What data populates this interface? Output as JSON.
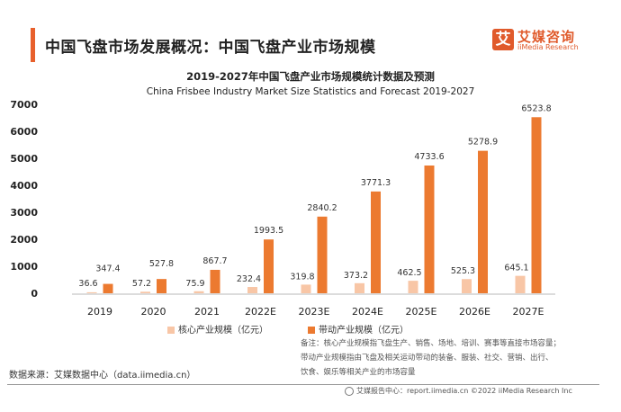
{
  "header": {
    "title": "中国飞盘市场发展概况：中国飞盘产业市场规模",
    "accent_color": "#e8602c"
  },
  "logo": {
    "mark": "艾",
    "name_cn": "艾媒咨询",
    "name_en": "iiMedia Research",
    "color": "#e05a2b"
  },
  "chart_data": {
    "type": "bar",
    "title": "2019-2027年中国飞盘产业市场规模统计数据及预测",
    "subtitle": "China Frisbee Industry Market Size Statistics and Forecast 2019-2027",
    "xlabel": "",
    "ylabel": "",
    "ylim": [
      0,
      7000
    ],
    "yticks": [
      "0",
      "1000",
      "2000",
      "3000",
      "4000",
      "5000",
      "6000",
      "7000"
    ],
    "ytick_values": [
      0,
      1000,
      2000,
      3000,
      4000,
      5000,
      6000,
      7000
    ],
    "grid": false,
    "legend_position": "bottom",
    "categories": [
      "2019",
      "2020",
      "2021",
      "2022E",
      "2023E",
      "2024E",
      "2025E",
      "2026E",
      "2027E"
    ],
    "series": [
      {
        "name": "核心产业规模（亿元）",
        "color": "#f8c6a6",
        "values": [
          36.6,
          57.2,
          75.9,
          232.4,
          319.8,
          373.2,
          462.5,
          525.3,
          645.1
        ],
        "labels": [
          "36.6",
          "57.2",
          "75.9",
          "232.4",
          "319.8",
          "373.2",
          "462.5",
          "525.3",
          "645.1"
        ]
      },
      {
        "name": "带动产业规模（亿元）",
        "color": "#ec7a30",
        "values": [
          347.4,
          527.8,
          867.7,
          1993.5,
          2840.2,
          3771.3,
          4733.6,
          5278.9,
          6523.8
        ],
        "labels": [
          "347.4",
          "527.8",
          "867.7",
          "1993.5",
          "2840.2",
          "3771.3",
          "4733.6",
          "5278.9",
          "6523.8"
        ]
      }
    ]
  },
  "notes": {
    "lines": [
      "备注：核心产业规模指飞盘生产、销售、场地、培训、赛事等直接市场容量；",
      "带动产业规模指由飞盘及相关运动带动的装备、服装、社交、营销、出行、",
      "饮食、娱乐等相关产业的市场容量"
    ]
  },
  "source": "数据来源：艾媒数据中心（data.iimedia.cn）",
  "footer": "艾媒报告中心：report.iimedia.cn   ©2022  iiMedia Research  Inc"
}
